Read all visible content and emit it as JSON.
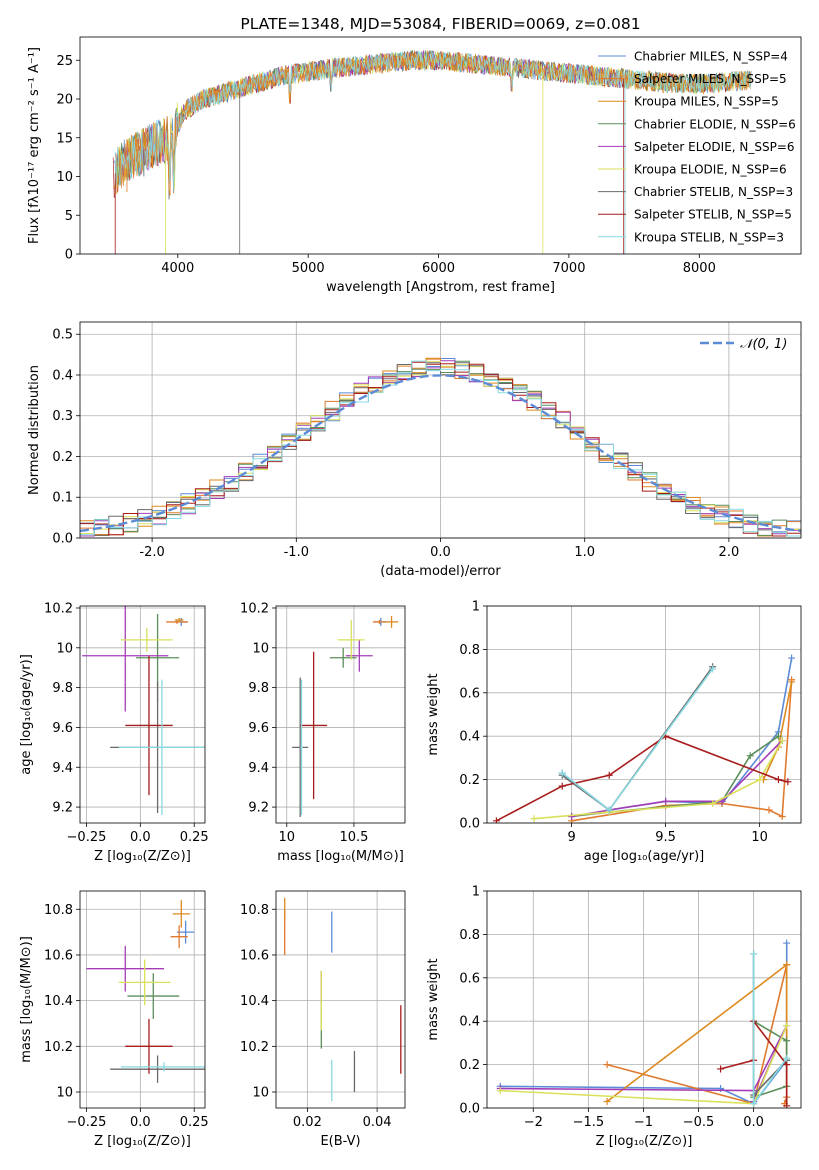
{
  "colors": {
    "series": [
      "#5c8bd6",
      "#e07a2e",
      "#dd8a1e",
      "#5a8f5a",
      "#a43cb8",
      "#d9e05a",
      "#6a6a6a",
      "#a81c1c",
      "#86d9e0"
    ],
    "gaussian": "#5c8bd6",
    "grid": "#b0b0b0"
  },
  "chart_data": [
    {
      "id": "spectrum",
      "type": "line",
      "title": "PLATE=1348, MJD=53084, FIBERID=0069, z=0.081",
      "xlabel": "wavelength [Angstrom, rest frame]",
      "ylabel": "Flux [fλ10⁻¹⁷ erg cm⁻² s⁻¹ A⁻¹]",
      "xlim": [
        3250,
        8780
      ],
      "ylim": [
        0,
        28
      ],
      "xticks": [
        4000,
        5000,
        6000,
        7000,
        8000
      ],
      "yticks": [
        0,
        5,
        10,
        15,
        20,
        25
      ],
      "grid": false,
      "legend_position": "top-right",
      "legend": [
        "Chabrier MILES, N_SSP=4",
        "Salpeter MILES, N_SSP=5",
        "Kroupa MILES, N_SSP=5",
        "Chabrier ELODIE, N_SSP=6",
        "Salpeter ELODIE, N_SSP=6",
        "Kroupa ELODIE, N_SSP=6",
        "Chabrier STELIB, N_SSP=3",
        "Salpeter STELIB, N_SSP=5",
        "Kroupa STELIB, N_SSP=3"
      ],
      "continuum_x": [
        3500,
        3600,
        3800,
        3950,
        4050,
        4200,
        4400,
        4600,
        4800,
        5000,
        5200,
        5500,
        5800,
        6000,
        6300,
        6600,
        6900,
        7200,
        7500,
        7800,
        8100,
        8400
      ],
      "continuum_y": [
        10,
        12,
        14,
        15,
        18.5,
        20,
        21,
        22,
        23,
        23.5,
        24,
        24.5,
        25,
        25,
        24.5,
        24,
        23.5,
        23,
        22.5,
        22,
        22,
        22.5
      ]
    },
    {
      "id": "residuals",
      "type": "step",
      "xlabel": "(data-model)/error",
      "ylabel": "Normed distribution",
      "xlim": [
        -2.5,
        2.5
      ],
      "ylim": [
        0,
        0.53
      ],
      "xticks": [
        -2,
        -1,
        0,
        1,
        2
      ],
      "yticks": [
        0.0,
        0.1,
        0.2,
        0.3,
        0.4,
        0.5
      ],
      "grid": true,
      "legend_position": "top-right",
      "legend": [
        "𝒩(0, 1)"
      ]
    },
    {
      "id": "age_vs_Z",
      "type": "errorbar",
      "xlabel": "Z [log₁₀(Z/Z⊙)]",
      "ylabel": "age  [log₁₀(age/yr)]",
      "xlim": [
        -0.28,
        0.3
      ],
      "ylim": [
        9.12,
        10.21
      ],
      "xticks": [
        -0.25,
        0.0,
        0.25
      ],
      "yticks": [
        9.2,
        9.4,
        9.6,
        9.8,
        10.0,
        10.2
      ],
      "grid": true,
      "points": [
        {
          "x": 0.19,
          "xerr": 0.03,
          "y": 10.13,
          "yerr": 0.02
        },
        {
          "x": 0.17,
          "xerr": 0.05,
          "y": 10.13,
          "yerr": 0.01
        },
        {
          "x": 0.18,
          "xerr": 0.02,
          "y": 10.14,
          "yerr": 0.01
        },
        {
          "x": 0.08,
          "xerr": 0.1,
          "y": 9.95,
          "yerr": 0.22
        },
        {
          "x": -0.07,
          "xerr": 0.2,
          "y": 9.96,
          "yerr": 0.28
        },
        {
          "x": 0.03,
          "xerr": 0.12,
          "y": 10.04,
          "yerr": 0.06
        },
        {
          "x": 0.08,
          "xerr": 0.22,
          "y": 9.5,
          "yerr": 0.33
        },
        {
          "x": 0.04,
          "xerr": 0.11,
          "y": 9.61,
          "yerr": 0.35
        },
        {
          "x": 0.1,
          "xerr": 0.2,
          "y": 9.5,
          "yerr": 0.34
        }
      ]
    },
    {
      "id": "age_vs_mass",
      "type": "errorbar",
      "xlabel": "mass [log₁₀(M/M⊙)]",
      "ylabel": "",
      "xlim": [
        9.92,
        10.88
      ],
      "ylim": [
        9.12,
        10.21
      ],
      "xticks": [
        10.0,
        10.5
      ],
      "yticks": [
        9.2,
        9.4,
        9.6,
        9.8,
        10.0,
        10.2
      ],
      "grid": true,
      "points": [
        {
          "x": 10.7,
          "xerr": 0.05,
          "y": 10.13,
          "yerr": 0.02
        },
        {
          "x": 10.69,
          "xerr": 0.05,
          "y": 10.13,
          "yerr": 0.01
        },
        {
          "x": 10.78,
          "xerr": 0.05,
          "y": 10.13,
          "yerr": 0.03
        },
        {
          "x": 10.42,
          "xerr": 0.1,
          "y": 9.95,
          "yerr": 0.05
        },
        {
          "x": 10.54,
          "xerr": 0.1,
          "y": 9.96,
          "yerr": 0.08
        },
        {
          "x": 10.48,
          "xerr": 0.1,
          "y": 10.04,
          "yerr": 0.1
        },
        {
          "x": 10.1,
          "xerr": 0.06,
          "y": 9.5,
          "yerr": 0.35
        },
        {
          "x": 10.2,
          "xerr": 0.1,
          "y": 9.61,
          "yerr": 0.37
        },
        {
          "x": 10.11,
          "xerr": 0.01,
          "y": 9.5,
          "yerr": 0.34
        }
      ]
    },
    {
      "id": "weight_vs_age",
      "type": "line",
      "xlabel": "age  [log₁₀(age/yr)]",
      "ylabel": "mass weight",
      "xlim": [
        8.55,
        10.22
      ],
      "ylim": [
        0.0,
        1.0
      ],
      "xticks": [
        9.0,
        9.5,
        10.0
      ],
      "yticks": [
        0.0,
        0.2,
        0.4,
        0.6,
        0.8,
        1.0
      ],
      "grid": true,
      "series": [
        {
          "x": [
            8.95,
            9.2,
            9.5,
            9.8,
            10.1,
            10.17
          ],
          "y": [
            0.23,
            0.06,
            0.1,
            0.09,
            0.42,
            0.76
          ]
        },
        {
          "x": [
            9.0,
            9.5,
            9.8,
            10.05,
            10.12,
            10.17
          ],
          "y": [
            0.01,
            0.08,
            0.09,
            0.06,
            0.03,
            0.66
          ]
        },
        {
          "x": [
            10.02,
            10.1,
            10.17
          ],
          "y": [
            0.2,
            0.35,
            0.65
          ]
        },
        {
          "x": [
            9.0,
            9.2,
            9.8,
            9.95,
            10.1
          ],
          "y": [
            0.03,
            0.05,
            0.1,
            0.31,
            0.4
          ]
        },
        {
          "x": [
            9.0,
            9.2,
            9.5,
            9.8,
            10.12
          ],
          "y": [
            0.03,
            0.06,
            0.1,
            0.1,
            0.38
          ]
        },
        {
          "x": [
            8.8,
            9.2,
            9.75,
            10.0,
            10.12
          ],
          "y": [
            0.02,
            0.05,
            0.09,
            0.2,
            0.38
          ]
        },
        {
          "x": [
            8.95,
            9.2,
            9.75
          ],
          "y": [
            0.22,
            0.06,
            0.72
          ]
        },
        {
          "x": [
            8.6,
            8.95,
            9.2,
            9.5,
            10.1,
            10.15
          ],
          "y": [
            0.01,
            0.17,
            0.22,
            0.4,
            0.2,
            0.19
          ]
        },
        {
          "x": [
            8.95,
            9.2,
            9.75
          ],
          "y": [
            0.23,
            0.06,
            0.71
          ]
        }
      ]
    },
    {
      "id": "mass_vs_Z",
      "type": "errorbar",
      "xlabel": "Z [log₁₀(Z/Z⊙)]",
      "ylabel": "mass [log₁₀(M/M⊙)]",
      "xlim": [
        -0.28,
        0.3
      ],
      "ylim": [
        9.93,
        10.88
      ],
      "xticks": [
        -0.25,
        0.0,
        0.25
      ],
      "yticks": [
        10.0,
        10.2,
        10.4,
        10.6,
        10.8
      ],
      "grid": true,
      "points": [
        {
          "x": 0.21,
          "xerr": 0.04,
          "y": 10.7,
          "yerr": 0.05
        },
        {
          "x": 0.18,
          "xerr": 0.04,
          "y": 10.68,
          "yerr": 0.05
        },
        {
          "x": 0.19,
          "xerr": 0.04,
          "y": 10.78,
          "yerr": 0.06
        },
        {
          "x": 0.06,
          "xerr": 0.12,
          "y": 10.42,
          "yerr": 0.1
        },
        {
          "x": -0.07,
          "xerr": 0.18,
          "y": 10.54,
          "yerr": 0.1
        },
        {
          "x": 0.02,
          "xerr": 0.12,
          "y": 10.48,
          "yerr": 0.1
        },
        {
          "x": 0.08,
          "xerr": 0.22,
          "y": 10.1,
          "yerr": 0.06
        },
        {
          "x": 0.04,
          "xerr": 0.11,
          "y": 10.2,
          "yerr": 0.12
        },
        {
          "x": 0.11,
          "xerr": 0.2,
          "y": 10.11,
          "yerr": 0.02
        }
      ]
    },
    {
      "id": "mass_vs_ebv",
      "type": "errorbar",
      "xlabel": "E(B-V)",
      "ylabel": "",
      "xlim": [
        0.011,
        0.048
      ],
      "ylim": [
        9.93,
        10.88
      ],
      "xticks": [
        0.02,
        0.04
      ],
      "yticks": [
        10.0,
        10.2,
        10.4,
        10.6,
        10.8
      ],
      "grid": true,
      "points": [
        {
          "x": 0.027,
          "xerr": 0,
          "y": 10.7,
          "yerr": 0.09
        },
        {
          "x": 0.0135,
          "xerr": 0,
          "y": 10.7,
          "yerr": 0.1
        },
        {
          "x": 0.0135,
          "xerr": 0,
          "y": 10.8,
          "yerr": 0.05
        },
        {
          "x": 0.024,
          "xerr": 0,
          "y": 10.29,
          "yerr": 0.1
        },
        {
          "x": 0.024,
          "xerr": 0,
          "y": 10.46,
          "yerr": 0.07
        },
        {
          "x": 0.024,
          "xerr": 0,
          "y": 10.4,
          "yerr": 0.13
        },
        {
          "x": 0.0335,
          "xerr": 0,
          "y": 10.09,
          "yerr": 0.09
        },
        {
          "x": 0.0468,
          "xerr": 0,
          "y": 10.23,
          "yerr": 0.15
        },
        {
          "x": 0.027,
          "xerr": 0,
          "y": 10.05,
          "yerr": 0.09
        }
      ]
    },
    {
      "id": "weight_vs_Z",
      "type": "line",
      "xlabel": "Z [log₁₀(Z/Z⊙)]",
      "ylabel": "mass weight",
      "xlim": [
        -2.42,
        0.43
      ],
      "ylim": [
        0.0,
        1.0
      ],
      "xticks": [
        -2.0,
        -1.5,
        -1.0,
        -0.5,
        0.0
      ],
      "yticks": [
        0.0,
        0.2,
        0.4,
        0.6,
        0.8,
        1.0
      ],
      "grid": true,
      "series": [
        {
          "x": [
            -2.3,
            -0.3,
            0.0,
            0.3,
            0.3
          ],
          "y": [
            0.1,
            0.09,
            0.02,
            0.22,
            0.76
          ]
        },
        {
          "x": [
            -1.33,
            0.0,
            0.3,
            0.3,
            0.28
          ],
          "y": [
            0.2,
            0.02,
            0.66,
            0.05,
            0.02
          ]
        },
        {
          "x": [
            -1.33,
            0.3,
            0.3
          ],
          "y": [
            0.03,
            0.66,
            0.1
          ]
        },
        {
          "x": [
            0.0,
            0.3,
            0.3,
            0.0
          ],
          "y": [
            0.4,
            0.31,
            0.1,
            0.05
          ]
        },
        {
          "x": [
            -2.3,
            0.0,
            0.3,
            0.0
          ],
          "y": [
            0.09,
            0.08,
            0.38,
            0.03
          ]
        },
        {
          "x": [
            -2.3,
            0.0,
            0.3
          ],
          "y": [
            0.08,
            0.02,
            0.38
          ]
        },
        {
          "x": [
            0.0,
            0.0,
            0.3
          ],
          "y": [
            0.71,
            0.06,
            0.22
          ]
        },
        {
          "x": [
            -0.3,
            0.0,
            0.0,
            0.3,
            0.3
          ],
          "y": [
            0.18,
            0.22,
            0.4,
            0.2,
            0.01
          ]
        },
        {
          "x": [
            0.0,
            0.0,
            0.3
          ],
          "y": [
            0.71,
            0.02,
            0.23
          ]
        }
      ]
    }
  ]
}
